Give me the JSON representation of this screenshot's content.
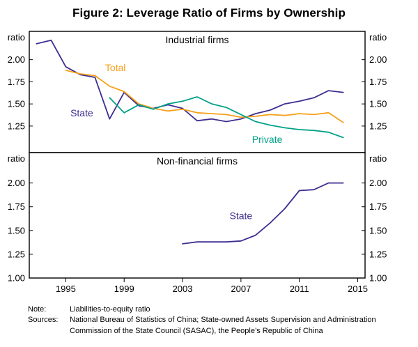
{
  "title": "Figure 2: Leverage Ratio of Firms by Ownership",
  "chart_data": {
    "type": "line",
    "xlim": [
      1992.5,
      2015.5
    ],
    "x_ticks": [
      1995,
      1999,
      2003,
      2007,
      2011,
      2015
    ],
    "panels": [
      {
        "title": "Industrial firms",
        "unit_left": "ratio",
        "unit_right": "ratio",
        "ylim": [
          0.95,
          2.32
        ],
        "y_ticks": [
          1.25,
          1.5,
          1.75,
          2.0
        ],
        "series": [
          {
            "name": "State",
            "color": "#3f2d91",
            "label": {
              "text": "State",
              "x": 1996.1,
              "y": 1.36
            },
            "points": [
              [
                1993,
                2.18
              ],
              [
                1994,
                2.22
              ],
              [
                1995,
                1.92
              ],
              [
                1996,
                1.83
              ],
              [
                1997,
                1.8
              ],
              [
                1998,
                1.33
              ],
              [
                1999,
                1.63
              ],
              [
                2000,
                1.48
              ],
              [
                2001,
                1.45
              ],
              [
                2002,
                1.49
              ],
              [
                2003,
                1.45
              ],
              [
                2004,
                1.31
              ],
              [
                2005,
                1.33
              ],
              [
                2006,
                1.3
              ],
              [
                2007,
                1.33
              ],
              [
                2008,
                1.39
              ],
              [
                2009,
                1.43
              ],
              [
                2010,
                1.5
              ],
              [
                2011,
                1.53
              ],
              [
                2012,
                1.57
              ],
              [
                2013,
                1.65
              ],
              [
                2014,
                1.63
              ]
            ]
          },
          {
            "name": "Total",
            "color": "#f6a01a",
            "label": {
              "text": "Total",
              "x": 1998.4,
              "y": 1.87
            },
            "points": [
              [
                1995,
                1.88
              ],
              [
                1996,
                1.84
              ],
              [
                1997,
                1.82
              ],
              [
                1998,
                1.7
              ],
              [
                1999,
                1.64
              ],
              [
                2000,
                1.5
              ],
              [
                2001,
                1.45
              ],
              [
                2002,
                1.42
              ],
              [
                2003,
                1.44
              ],
              [
                2004,
                1.4
              ],
              [
                2005,
                1.39
              ],
              [
                2006,
                1.38
              ],
              [
                2007,
                1.35
              ],
              [
                2008,
                1.36
              ],
              [
                2009,
                1.38
              ],
              [
                2010,
                1.37
              ],
              [
                2011,
                1.39
              ],
              [
                2012,
                1.38
              ],
              [
                2013,
                1.4
              ],
              [
                2014,
                1.29
              ]
            ]
          },
          {
            "name": "Private",
            "color": "#00a188",
            "label": {
              "text": "Private",
              "x": 2008.8,
              "y": 1.06
            },
            "points": [
              [
                1998,
                1.57
              ],
              [
                1999,
                1.4
              ],
              [
                2000,
                1.49
              ],
              [
                2001,
                1.44
              ],
              [
                2002,
                1.5
              ],
              [
                2003,
                1.53
              ],
              [
                2004,
                1.58
              ],
              [
                2005,
                1.5
              ],
              [
                2006,
                1.46
              ],
              [
                2007,
                1.38
              ],
              [
                2008,
                1.3
              ],
              [
                2009,
                1.26
              ],
              [
                2010,
                1.23
              ],
              [
                2011,
                1.21
              ],
              [
                2012,
                1.2
              ],
              [
                2013,
                1.18
              ],
              [
                2014,
                1.12
              ]
            ]
          }
        ]
      },
      {
        "title": "Non-financial firms",
        "unit_left": "ratio",
        "unit_right": "ratio",
        "ylim": [
          1.0,
          2.32
        ],
        "y_ticks": [
          1.0,
          1.25,
          1.5,
          1.75,
          2.0
        ],
        "series": [
          {
            "name": "State",
            "color": "#3f2d91",
            "label": {
              "text": "State",
              "x": 2007.0,
              "y": 1.62
            },
            "points": [
              [
                2003,
                1.36
              ],
              [
                2004,
                1.38
              ],
              [
                2005,
                1.38
              ],
              [
                2006,
                1.38
              ],
              [
                2007,
                1.39
              ],
              [
                2008,
                1.45
              ],
              [
                2009,
                1.58
              ],
              [
                2010,
                1.73
              ],
              [
                2011,
                1.92
              ],
              [
                2012,
                1.93
              ],
              [
                2013,
                2.0
              ],
              [
                2014,
                2.0
              ]
            ]
          }
        ]
      }
    ]
  },
  "notes": {
    "note_label": "Note:",
    "note_text": "Liabilities-to-equity ratio",
    "sources_label": "Sources:",
    "sources_text": "National Bureau of Statistics of China; State-owned Assets Supervision and Administration Commission of the State Council (SASAC), the People’s Republic of China"
  }
}
